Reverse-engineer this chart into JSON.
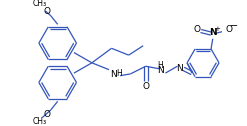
{
  "bg_color": "#ffffff",
  "line_color": "#3355bb",
  "text_color": "#000000",
  "fig_width": 2.47,
  "fig_height": 1.26,
  "dpi": 100,
  "xlim": [
    0,
    247
  ],
  "ylim": [
    0,
    126
  ]
}
